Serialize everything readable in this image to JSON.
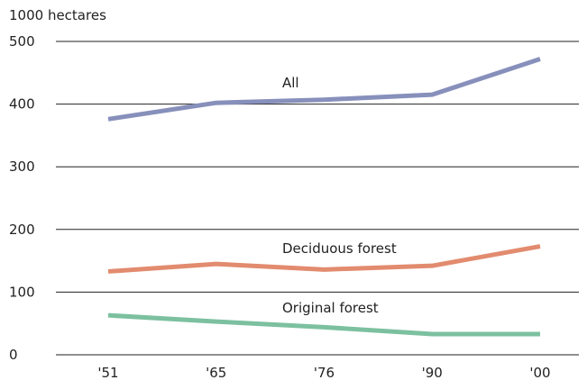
{
  "chart_data": {
    "type": "line",
    "ylabel": "1000 hectares",
    "categories": [
      "'51",
      "'65",
      "'76",
      "'90",
      "'00"
    ],
    "ylim": [
      0,
      500
    ],
    "yticks": [
      0,
      100,
      200,
      300,
      400,
      500
    ],
    "grid": true,
    "series": [
      {
        "name": "All",
        "values": [
          376,
          402,
          407,
          415,
          472
        ],
        "color": "#8790bb"
      },
      {
        "name": "Deciduous forest",
        "values": [
          133,
          145,
          136,
          142,
          173
        ],
        "color": "#e28b6f"
      },
      {
        "name": "Original forest",
        "values": [
          63,
          53,
          44,
          33,
          33
        ],
        "color": "#7cc0a0"
      }
    ]
  }
}
